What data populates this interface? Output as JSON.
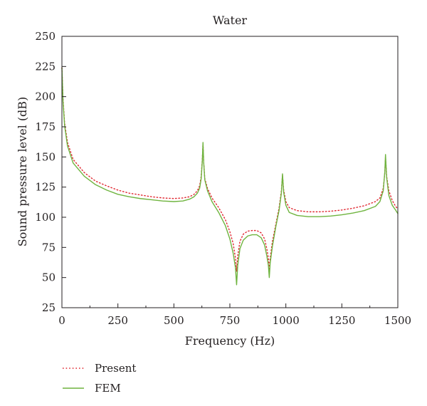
{
  "chart_data": {
    "type": "line",
    "title": "Water",
    "xlabel": "Frequency (Hz)",
    "ylabel": "Sound pressure level (dB)",
    "xlim": [
      0,
      1500
    ],
    "ylim": [
      25,
      250
    ],
    "x_ticks": [
      "0",
      "250",
      "500",
      "750",
      "1000",
      "1250",
      "1500"
    ],
    "y_ticks": [
      "25",
      "50",
      "75",
      "100",
      "125",
      "150",
      "175",
      "200",
      "225",
      "250"
    ],
    "grid": false,
    "legend_position": "bottom-left",
    "series": [
      {
        "name": "Present",
        "color": "#e0262f",
        "style": "dotted",
        "points": [
          [
            0,
            224
          ],
          [
            5,
            198
          ],
          [
            12,
            178
          ],
          [
            25,
            162
          ],
          [
            50,
            148
          ],
          [
            100,
            137
          ],
          [
            150,
            130
          ],
          [
            200,
            126
          ],
          [
            250,
            122.5
          ],
          [
            300,
            120
          ],
          [
            350,
            118.5
          ],
          [
            400,
            117
          ],
          [
            450,
            116
          ],
          [
            500,
            115.5
          ],
          [
            540,
            116
          ],
          [
            570,
            117
          ],
          [
            590,
            119
          ],
          [
            605,
            122
          ],
          [
            615,
            126
          ],
          [
            622,
            134
          ],
          [
            627,
            148
          ],
          [
            630,
            161
          ],
          [
            633,
            146
          ],
          [
            638,
            132
          ],
          [
            650,
            124
          ],
          [
            670,
            116
          ],
          [
            700,
            108
          ],
          [
            730,
            98
          ],
          [
            750,
            88
          ],
          [
            765,
            78
          ],
          [
            775,
            66
          ],
          [
            780,
            55
          ],
          [
            785,
            68
          ],
          [
            795,
            80
          ],
          [
            810,
            86
          ],
          [
            830,
            88.5
          ],
          [
            850,
            89
          ],
          [
            870,
            89
          ],
          [
            890,
            87
          ],
          [
            905,
            82
          ],
          [
            915,
            74
          ],
          [
            922,
            66
          ],
          [
            926,
            56
          ],
          [
            930,
            66
          ],
          [
            940,
            80
          ],
          [
            955,
            94
          ],
          [
            970,
            108
          ],
          [
            980,
            122
          ],
          [
            985,
            135
          ],
          [
            990,
            123
          ],
          [
            1000,
            113
          ],
          [
            1015,
            108
          ],
          [
            1050,
            105.5
          ],
          [
            1100,
            104.5
          ],
          [
            1150,
            104.5
          ],
          [
            1200,
            105
          ],
          [
            1250,
            106
          ],
          [
            1300,
            107.5
          ],
          [
            1350,
            109.5
          ],
          [
            1400,
            113
          ],
          [
            1420,
            116
          ],
          [
            1435,
            124
          ],
          [
            1442,
            137
          ],
          [
            1445,
            150
          ],
          [
            1450,
            134
          ],
          [
            1460,
            122
          ],
          [
            1475,
            114
          ],
          [
            1490,
            109
          ],
          [
            1500,
            107
          ]
        ]
      },
      {
        "name": "FEM",
        "color": "#6fb43f",
        "style": "solid",
        "points": [
          [
            0,
            224
          ],
          [
            5,
            196
          ],
          [
            12,
            176
          ],
          [
            25,
            159
          ],
          [
            50,
            145
          ],
          [
            100,
            134
          ],
          [
            150,
            127
          ],
          [
            200,
            122.5
          ],
          [
            250,
            119
          ],
          [
            300,
            117
          ],
          [
            350,
            115.5
          ],
          [
            400,
            114.5
          ],
          [
            450,
            113.5
          ],
          [
            500,
            113
          ],
          [
            540,
            113.5
          ],
          [
            570,
            115
          ],
          [
            590,
            117
          ],
          [
            605,
            120
          ],
          [
            615,
            124
          ],
          [
            622,
            132
          ],
          [
            627,
            147
          ],
          [
            630,
            162
          ],
          [
            633,
            146
          ],
          [
            638,
            131
          ],
          [
            650,
            122
          ],
          [
            670,
            113
          ],
          [
            700,
            104
          ],
          [
            730,
            93
          ],
          [
            750,
            82
          ],
          [
            765,
            70
          ],
          [
            775,
            58
          ],
          [
            780,
            44
          ],
          [
            785,
            60
          ],
          [
            795,
            74
          ],
          [
            810,
            81
          ],
          [
            830,
            84.5
          ],
          [
            850,
            85.5
          ],
          [
            870,
            85.5
          ],
          [
            890,
            83
          ],
          [
            905,
            77
          ],
          [
            915,
            68
          ],
          [
            922,
            60
          ],
          [
            926,
            50
          ],
          [
            930,
            62
          ],
          [
            940,
            76
          ],
          [
            955,
            92
          ],
          [
            970,
            106
          ],
          [
            980,
            120
          ],
          [
            985,
            136
          ],
          [
            990,
            121
          ],
          [
            1000,
            110
          ],
          [
            1015,
            104
          ],
          [
            1050,
            101.5
          ],
          [
            1100,
            100.5
          ],
          [
            1150,
            100.5
          ],
          [
            1200,
            101
          ],
          [
            1250,
            102
          ],
          [
            1300,
            103.5
          ],
          [
            1350,
            105.5
          ],
          [
            1400,
            109
          ],
          [
            1420,
            113
          ],
          [
            1435,
            122
          ],
          [
            1442,
            138
          ],
          [
            1445,
            152
          ],
          [
            1450,
            133
          ],
          [
            1460,
            118
          ],
          [
            1475,
            110
          ],
          [
            1490,
            106
          ],
          [
            1500,
            103
          ]
        ]
      }
    ]
  }
}
